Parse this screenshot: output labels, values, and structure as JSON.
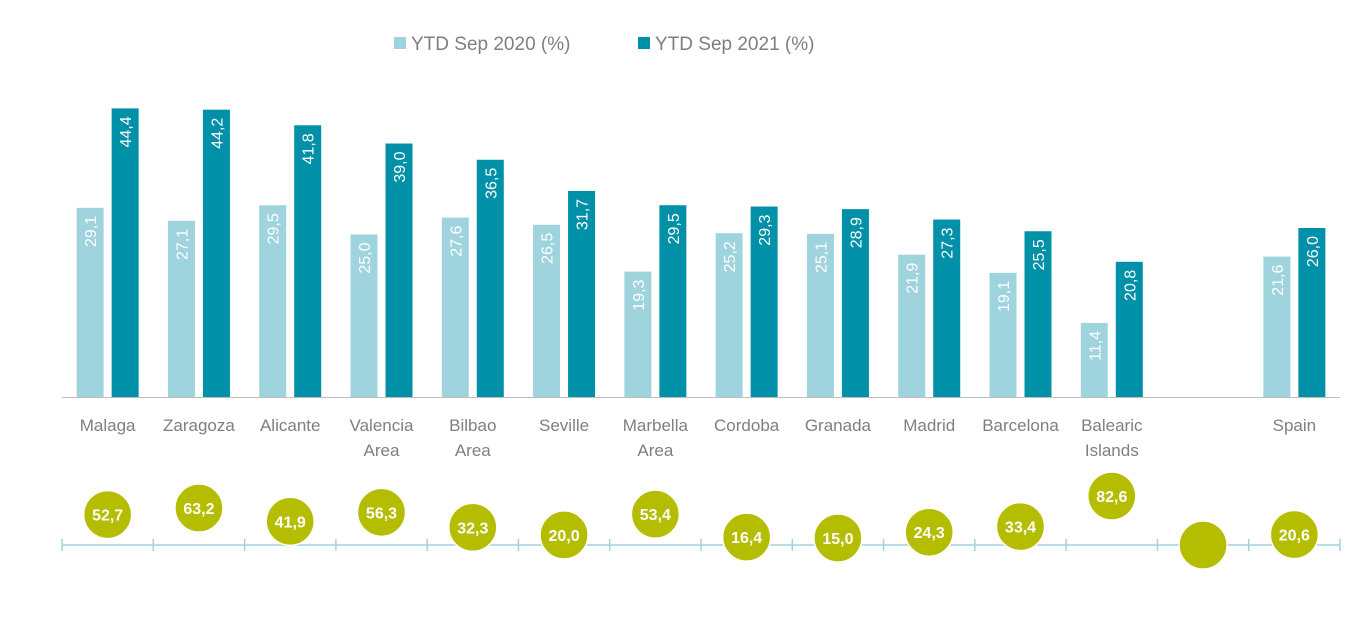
{
  "chart_data": {
    "type": "bar",
    "title": "",
    "xlabel": "",
    "ylabel": "",
    "ylim": [
      0,
      45
    ],
    "grid": false,
    "legend_position": "top-center",
    "categories": [
      "Malaga",
      "Zaragoza",
      "Alicante",
      "Valencia Area",
      "Bilbao Area",
      "Seville",
      "Marbella Area",
      "Cordoba",
      "Granada",
      "Madrid",
      "Barcelona",
      "Balearic Islands",
      "",
      "Spain"
    ],
    "series": [
      {
        "name": "YTD Sep 2020 (%)",
        "color": "#9fd4df",
        "values": [
          29.1,
          27.1,
          29.5,
          25.0,
          27.6,
          26.5,
          19.3,
          25.2,
          25.1,
          21.9,
          19.1,
          11.4,
          null,
          21.6
        ],
        "labels": [
          "29,1",
          "27,1",
          "29,5",
          "25,0",
          "27,6",
          "26,5",
          "19,3",
          "25,2",
          "25,1",
          "21,9",
          "19,1",
          "11,4",
          "",
          "21,6"
        ]
      },
      {
        "name": "YTD Sep 2021 (%)",
        "color": "#0090a8",
        "values": [
          44.4,
          44.2,
          41.8,
          39.0,
          36.5,
          31.7,
          29.5,
          29.3,
          28.9,
          27.3,
          25.5,
          20.8,
          null,
          26.0
        ],
        "labels": [
          "44,4",
          "44,2",
          "41,8",
          "39,0",
          "36,5",
          "31,7",
          "29,5",
          "29,3",
          "28,9",
          "27,3",
          "25,5",
          "20,8",
          "",
          "26,0"
        ]
      }
    ],
    "bubbles": {
      "color": "#b5bd00",
      "values": [
        52.7,
        63.2,
        41.9,
        56.3,
        32.3,
        20.0,
        53.4,
        16.4,
        15.0,
        24.3,
        33.4,
        82.6,
        null,
        20.6
      ],
      "labels": [
        "52,7",
        "63,2",
        "41,9",
        "56,3",
        "32,3",
        "20,0",
        "53,4",
        "16,4",
        "15,0",
        "24,3",
        "33,4",
        "82,6",
        "",
        "20,6"
      ]
    },
    "colors": {
      "axis": "#bfbfbf",
      "bubble_axis": "#9fd4df",
      "text": "#7f7f7f",
      "bubble_border": "#ffffff"
    }
  }
}
